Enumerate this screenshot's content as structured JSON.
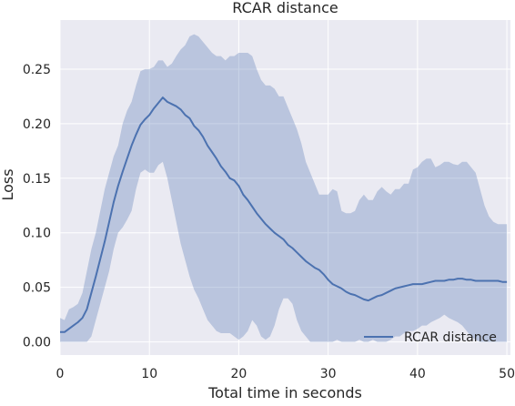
{
  "colors": {
    "background": "#ffffff",
    "plot_background": "#eaeaf2",
    "grid": "#ffffff",
    "line": "#4c72b0",
    "band": "#4c72b0",
    "text": "#262626"
  },
  "chart_data": {
    "type": "line",
    "title": "RCAR distance",
    "xlabel": "Total time in seconds",
    "ylabel": "Loss",
    "xlim": [
      0,
      50.4
    ],
    "ylim": [
      -0.012,
      0.295
    ],
    "xticks": [
      0,
      10,
      20,
      30,
      40,
      50
    ],
    "xtick_labels": [
      "0",
      "10",
      "20",
      "30",
      "40",
      "50"
    ],
    "yticks": [
      0.0,
      0.05,
      0.1,
      0.15,
      0.2,
      0.25
    ],
    "ytick_labels": [
      "0.00",
      "0.05",
      "0.10",
      "0.15",
      "0.20",
      "0.25"
    ],
    "grid": true,
    "legend": {
      "position": "lower right",
      "entries": [
        "RCAR distance"
      ]
    },
    "series": [
      {
        "name": "RCAR distance",
        "x": [
          0,
          0.5,
          1,
          1.5,
          2,
          2.5,
          3,
          3.5,
          4,
          4.5,
          5,
          5.5,
          6,
          6.5,
          7,
          7.5,
          8,
          8.5,
          9,
          9.5,
          10,
          10.5,
          11,
          11.5,
          12,
          12.5,
          13,
          13.5,
          14,
          14.5,
          15,
          15.5,
          16,
          16.5,
          17,
          17.5,
          18,
          18.5,
          19,
          19.5,
          20,
          20.5,
          21,
          21.5,
          22,
          22.5,
          23,
          23.5,
          24,
          24.5,
          25,
          25.5,
          26,
          26.5,
          27,
          27.5,
          28,
          28.5,
          29,
          29.5,
          30,
          30.5,
          31,
          31.5,
          32,
          32.5,
          33,
          33.5,
          34,
          34.5,
          35,
          35.5,
          36,
          36.5,
          37,
          37.5,
          38,
          38.5,
          39,
          39.5,
          40,
          40.5,
          41,
          41.5,
          42,
          42.5,
          43,
          43.5,
          44,
          44.5,
          45,
          45.5,
          46,
          46.5,
          47,
          47.5,
          48,
          48.5,
          49,
          49.5,
          50
        ],
        "y": [
          0.009,
          0.009,
          0.012,
          0.015,
          0.018,
          0.022,
          0.03,
          0.045,
          0.06,
          0.076,
          0.092,
          0.11,
          0.128,
          0.143,
          0.156,
          0.168,
          0.18,
          0.19,
          0.199,
          0.204,
          0.208,
          0.214,
          0.219,
          0.224,
          0.22,
          0.218,
          0.216,
          0.213,
          0.208,
          0.205,
          0.198,
          0.194,
          0.188,
          0.18,
          0.174,
          0.168,
          0.161,
          0.156,
          0.15,
          0.148,
          0.143,
          0.135,
          0.13,
          0.124,
          0.118,
          0.113,
          0.108,
          0.104,
          0.1,
          0.097,
          0.094,
          0.089,
          0.086,
          0.082,
          0.078,
          0.074,
          0.071,
          0.068,
          0.066,
          0.062,
          0.057,
          0.053,
          0.051,
          0.049,
          0.046,
          0.044,
          0.043,
          0.041,
          0.039,
          0.038,
          0.04,
          0.042,
          0.043,
          0.045,
          0.047,
          0.049,
          0.05,
          0.051,
          0.052,
          0.053,
          0.053,
          0.053,
          0.054,
          0.055,
          0.056,
          0.056,
          0.056,
          0.057,
          0.057,
          0.058,
          0.058,
          0.057,
          0.057,
          0.056,
          0.056,
          0.056,
          0.056,
          0.056,
          0.056,
          0.055,
          0.055
        ],
        "y_upper": [
          0.022,
          0.02,
          0.03,
          0.032,
          0.035,
          0.045,
          0.065,
          0.085,
          0.1,
          0.12,
          0.14,
          0.155,
          0.17,
          0.18,
          0.2,
          0.212,
          0.22,
          0.235,
          0.248,
          0.25,
          0.25,
          0.252,
          0.258,
          0.258,
          0.252,
          0.255,
          0.262,
          0.268,
          0.272,
          0.28,
          0.282,
          0.28,
          0.275,
          0.27,
          0.265,
          0.262,
          0.262,
          0.258,
          0.262,
          0.262,
          0.265,
          0.265,
          0.265,
          0.262,
          0.25,
          0.24,
          0.235,
          0.235,
          0.232,
          0.225,
          0.225,
          0.215,
          0.205,
          0.195,
          0.182,
          0.165,
          0.155,
          0.145,
          0.135,
          0.135,
          0.135,
          0.14,
          0.138,
          0.12,
          0.118,
          0.118,
          0.12,
          0.13,
          0.135,
          0.13,
          0.13,
          0.138,
          0.142,
          0.138,
          0.135,
          0.14,
          0.14,
          0.145,
          0.145,
          0.158,
          0.16,
          0.165,
          0.168,
          0.168,
          0.16,
          0.162,
          0.165,
          0.165,
          0.163,
          0.162,
          0.165,
          0.165,
          0.16,
          0.155,
          0.14,
          0.125,
          0.115,
          0.11,
          0.108,
          0.108,
          0.108
        ],
        "y_lower": [
          0.0,
          0.0,
          0.0,
          0.0,
          0.0,
          0.0,
          0.0,
          0.005,
          0.02,
          0.035,
          0.05,
          0.065,
          0.085,
          0.1,
          0.105,
          0.112,
          0.12,
          0.14,
          0.155,
          0.158,
          0.155,
          0.155,
          0.162,
          0.165,
          0.15,
          0.13,
          0.11,
          0.09,
          0.075,
          0.06,
          0.048,
          0.04,
          0.03,
          0.02,
          0.015,
          0.01,
          0.008,
          0.008,
          0.008,
          0.005,
          0.002,
          0.005,
          0.01,
          0.02,
          0.015,
          0.005,
          0.002,
          0.005,
          0.015,
          0.03,
          0.04,
          0.04,
          0.035,
          0.02,
          0.01,
          0.005,
          0.0,
          0.0,
          0.0,
          0.0,
          0.0,
          0.0,
          0.002,
          0.0,
          0.0,
          0.0,
          0.0,
          0.002,
          0.0,
          0.0,
          0.002,
          0.0,
          0.0,
          0.0,
          0.002,
          0.005,
          0.005,
          0.008,
          0.01,
          0.01,
          0.012,
          0.015,
          0.015,
          0.018,
          0.02,
          0.022,
          0.025,
          0.022,
          0.02,
          0.018,
          0.015,
          0.01,
          0.005,
          0.002,
          0.0,
          0.0,
          0.0,
          0.0,
          0.0,
          0.0,
          0.0
        ]
      }
    ]
  }
}
